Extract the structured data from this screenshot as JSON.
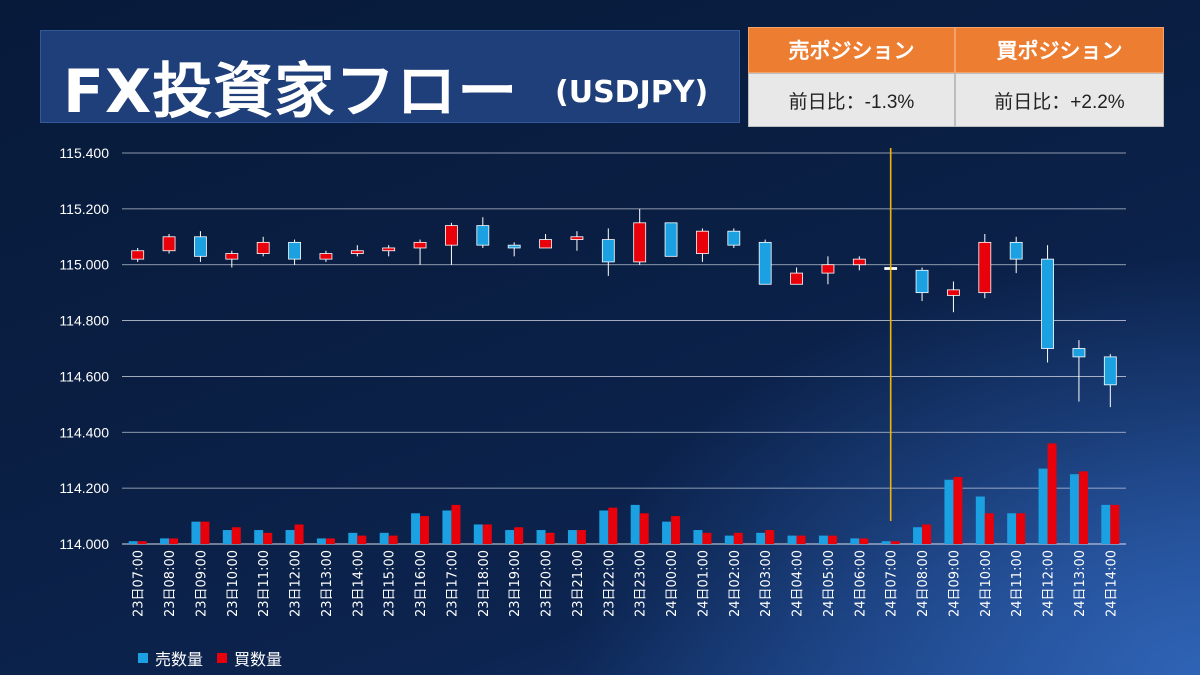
{
  "title": {
    "main": "FX投資家フロー",
    "pair": "(USDJPY)"
  },
  "positions": [
    {
      "header": "売ポジション",
      "value": "前日比：-1.3%"
    },
    {
      "header": "買ポジション",
      "value": "前日比：+2.2%"
    }
  ],
  "colors": {
    "sell": "#1ba1e2",
    "buy": "#e8000b",
    "marker": "#f2b400"
  },
  "chart_data": {
    "type": "candlestick+bar",
    "y_ticks": [
      "115.400",
      "115.200",
      "115.000",
      "114.800",
      "114.600",
      "114.400",
      "114.200",
      "114.000"
    ],
    "ylim": [
      114.0,
      115.4
    ],
    "current_index": 24,
    "categories": [
      "23日07:00",
      "23日08:00",
      "23日09:00",
      "23日10:00",
      "23日11:00",
      "23日12:00",
      "23日13:00",
      "23日14:00",
      "23日15:00",
      "23日16:00",
      "23日17:00",
      "23日18:00",
      "23日19:00",
      "23日20:00",
      "23日21:00",
      "23日22:00",
      "23日23:00",
      "24日00:00",
      "24日01:00",
      "24日02:00",
      "24日03:00",
      "24日04:00",
      "24日05:00",
      "24日06:00",
      "24日07:00",
      "24日08:00",
      "24日09:00",
      "24日10:00",
      "24日11:00",
      "24日12:00",
      "24日13:00",
      "24日14:00"
    ],
    "candles": [
      {
        "o": 115.02,
        "c": 115.05,
        "h": 115.06,
        "l": 115.01
      },
      {
        "o": 115.05,
        "c": 115.1,
        "h": 115.11,
        "l": 115.04
      },
      {
        "o": 115.1,
        "c": 115.03,
        "h": 115.12,
        "l": 115.01
      },
      {
        "o": 115.02,
        "c": 115.04,
        "h": 115.05,
        "l": 114.99
      },
      {
        "o": 115.04,
        "c": 115.08,
        "h": 115.1,
        "l": 115.03
      },
      {
        "o": 115.08,
        "c": 115.02,
        "h": 115.09,
        "l": 115.0
      },
      {
        "o": 115.02,
        "c": 115.04,
        "h": 115.05,
        "l": 115.01
      },
      {
        "o": 115.04,
        "c": 115.05,
        "h": 115.07,
        "l": 115.03
      },
      {
        "o": 115.05,
        "c": 115.06,
        "h": 115.07,
        "l": 115.03
      },
      {
        "o": 115.06,
        "c": 115.08,
        "h": 115.09,
        "l": 115.0
      },
      {
        "o": 115.07,
        "c": 115.14,
        "h": 115.15,
        "l": 115.0
      },
      {
        "o": 115.14,
        "c": 115.07,
        "h": 115.17,
        "l": 115.06
      },
      {
        "o": 115.07,
        "c": 115.06,
        "h": 115.08,
        "l": 115.03
      },
      {
        "o": 115.06,
        "c": 115.09,
        "h": 115.11,
        "l": 115.06
      },
      {
        "o": 115.09,
        "c": 115.1,
        "h": 115.12,
        "l": 115.05
      },
      {
        "o": 115.09,
        "c": 115.01,
        "h": 115.13,
        "l": 114.96
      },
      {
        "o": 115.01,
        "c": 115.15,
        "h": 115.2,
        "l": 115.0
      },
      {
        "o": 115.15,
        "c": 115.03,
        "h": 115.15,
        "l": 115.03
      },
      {
        "o": 115.04,
        "c": 115.12,
        "h": 115.13,
        "l": 115.01
      },
      {
        "o": 115.12,
        "c": 115.07,
        "h": 115.13,
        "l": 115.06
      },
      {
        "o": 115.08,
        "c": 114.93,
        "h": 115.09,
        "l": 114.93
      },
      {
        "o": 114.93,
        "c": 114.97,
        "h": 114.99,
        "l": 114.93
      },
      {
        "o": 114.97,
        "c": 115.0,
        "h": 115.03,
        "l": 114.93
      },
      {
        "o": 115.0,
        "c": 115.02,
        "h": 115.03,
        "l": 114.98
      },
      {
        "o": 114.99,
        "c": 114.99,
        "h": 114.99,
        "l": 114.99
      },
      {
        "o": 114.98,
        "c": 114.9,
        "h": 114.99,
        "l": 114.87
      },
      {
        "o": 114.89,
        "c": 114.91,
        "h": 114.94,
        "l": 114.83
      },
      {
        "o": 114.9,
        "c": 115.08,
        "h": 115.11,
        "l": 114.88
      },
      {
        "o": 115.08,
        "c": 115.02,
        "h": 115.1,
        "l": 114.97
      },
      {
        "o": 115.02,
        "c": 114.7,
        "h": 115.07,
        "l": 114.65
      },
      {
        "o": 114.7,
        "c": 114.67,
        "h": 114.73,
        "l": 114.51
      },
      {
        "o": 114.67,
        "c": 114.57,
        "h": 114.68,
        "l": 114.49
      }
    ],
    "series": [
      {
        "name": "売数量",
        "color": "#1ba1e2",
        "values": [
          114.01,
          114.02,
          114.08,
          114.05,
          114.05,
          114.05,
          114.02,
          114.04,
          114.04,
          114.11,
          114.12,
          114.07,
          114.05,
          114.05,
          114.05,
          114.12,
          114.14,
          114.08,
          114.05,
          114.03,
          114.04,
          114.03,
          114.03,
          114.02,
          114.01,
          114.06,
          114.23,
          114.17,
          114.11,
          114.27,
          114.25,
          114.14
        ]
      },
      {
        "name": "買数量",
        "color": "#e8000b",
        "values": [
          114.01,
          114.02,
          114.08,
          114.06,
          114.04,
          114.07,
          114.02,
          114.03,
          114.03,
          114.1,
          114.14,
          114.07,
          114.06,
          114.04,
          114.05,
          114.13,
          114.11,
          114.1,
          114.04,
          114.04,
          114.05,
          114.03,
          114.03,
          114.02,
          114.01,
          114.07,
          114.24,
          114.11,
          114.11,
          114.36,
          114.26,
          114.14
        ]
      }
    ],
    "legend": [
      {
        "label": "売数量",
        "color": "#1ba1e2"
      },
      {
        "label": "買数量",
        "color": "#e8000b"
      }
    ]
  }
}
